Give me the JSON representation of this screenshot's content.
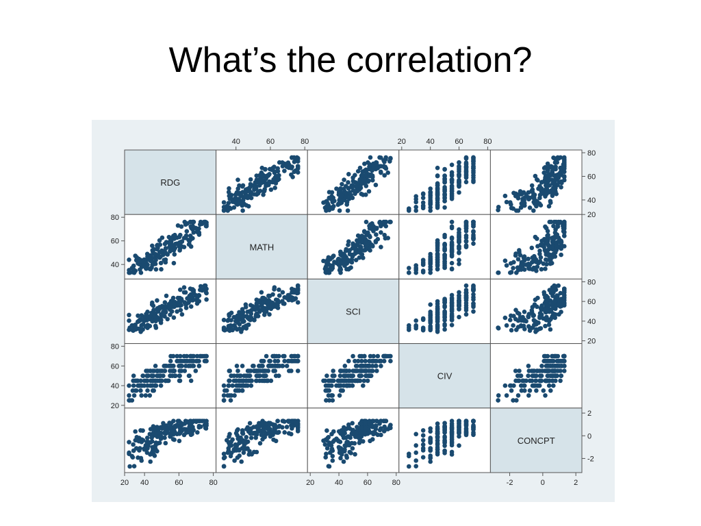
{
  "slide": {
    "title": "What’s the correlation?"
  },
  "colors": {
    "panel_bg": "#eaf0f3",
    "diag_fill": "#d6e3e9",
    "point": "#1a4a70",
    "border": "#555555"
  },
  "chart_data": {
    "type": "scatter",
    "subtype": "scatterplot-matrix",
    "variables": [
      "RDG",
      "MATH",
      "SCI",
      "CIV",
      "CONCPT"
    ],
    "ranges": {
      "RDG": [
        30,
        80
      ],
      "MATH": [
        30,
        80
      ],
      "SCI": [
        20,
        80
      ],
      "CIV": [
        20,
        80
      ],
      "CONCPT": [
        -3,
        2.2
      ]
    },
    "ticks": {
      "RDG": {
        "values": [
          20,
          40,
          60,
          80
        ],
        "labels": [
          "20",
          "40",
          "60",
          "80"
        ]
      },
      "MATH": {
        "values": [
          40,
          60,
          80
        ],
        "labels": [
          "40",
          "60",
          "80"
        ]
      },
      "SCI": {
        "values": [
          20,
          40,
          60,
          80
        ],
        "labels": [
          "20",
          "40",
          "60",
          "80"
        ]
      },
      "CIV": {
        "values": [
          20,
          40,
          60,
          80
        ],
        "labels": [
          "20",
          "40",
          "60",
          "80"
        ]
      },
      "CONCPT": {
        "values": [
          -2,
          0,
          2
        ],
        "labels": [
          "-2",
          "0",
          "2"
        ]
      }
    },
    "legend": "none",
    "grid": false,
    "n_points": 180,
    "sample_points": [
      [
        52,
        47,
        50,
        50,
        0.5
      ],
      [
        65,
        72,
        62,
        60,
        1.0
      ],
      [
        44,
        40,
        38,
        40,
        -0.5
      ],
      [
        58,
        60,
        55,
        55,
        0.3
      ],
      [
        36,
        38,
        42,
        35,
        -1.2
      ],
      [
        70,
        68,
        66,
        65,
        1.1
      ],
      [
        48,
        50,
        45,
        50,
        0.0
      ],
      [
        55,
        53,
        58,
        60,
        0.7
      ],
      [
        40,
        45,
        35,
        45,
        -0.3
      ],
      [
        62,
        58,
        61,
        50,
        0.9
      ],
      [
        46,
        41,
        48,
        55,
        -0.8
      ],
      [
        73,
        75,
        70,
        70,
        1.2
      ],
      [
        50,
        55,
        52,
        45,
        0.4
      ],
      [
        34,
        36,
        33,
        30,
        -2.3
      ],
      [
        60,
        64,
        57,
        65,
        0.6
      ],
      [
        42,
        43,
        40,
        40,
        -0.2
      ],
      [
        57,
        49,
        54,
        55,
        0.8
      ],
      [
        67,
        70,
        65,
        60,
        1.0
      ],
      [
        45,
        47,
        42,
        50,
        -1.0
      ],
      [
        53,
        58,
        60,
        55,
        0.2
      ],
      [
        38,
        39,
        30,
        35,
        -0.6
      ],
      [
        64,
        61,
        68,
        70,
        0.5
      ],
      [
        49,
        44,
        50,
        45,
        0.1
      ],
      [
        56,
        62,
        52,
        60,
        1.1
      ],
      [
        41,
        42,
        44,
        40,
        -1.5
      ],
      [
        69,
        66,
        63,
        65,
        0.9
      ],
      [
        47,
        52,
        47,
        50,
        -0.4
      ],
      [
        61,
        56,
        59,
        55,
        0.6
      ],
      [
        37,
        40,
        36,
        45,
        -0.9
      ],
      [
        72,
        74,
        71,
        70,
        1.3
      ]
    ]
  }
}
